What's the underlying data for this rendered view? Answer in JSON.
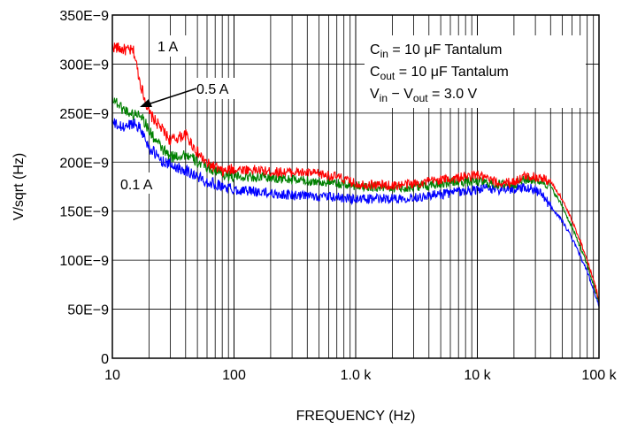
{
  "chart_data": {
    "type": "line",
    "xlabel": "FREQUENCY (Hz)",
    "ylabel": "V/sqrt (Hz)",
    "x_scale": "log",
    "xlim": [
      10,
      100000
    ],
    "ylim": [
      0,
      3.5e-07
    ],
    "x_ticks": [
      {
        "value": 10,
        "label": "10"
      },
      {
        "value": 100,
        "label": "100"
      },
      {
        "value": 1000,
        "label": "1.0 k"
      },
      {
        "value": 10000,
        "label": "10 k"
      },
      {
        "value": 100000,
        "label": "100 k"
      }
    ],
    "y_ticks": [
      {
        "value": 0,
        "label": "0"
      },
      {
        "value": 5e-08,
        "label": "50E−9"
      },
      {
        "value": 1e-07,
        "label": "100E−9"
      },
      {
        "value": 1.5e-07,
        "label": "150E−9"
      },
      {
        "value": 2e-07,
        "label": "200E−9"
      },
      {
        "value": 2.5e-07,
        "label": "250E−9"
      },
      {
        "value": 3e-07,
        "label": "300E−9"
      },
      {
        "value": 3.5e-07,
        "label": "350E−9"
      }
    ],
    "grid": true,
    "conditions": {
      "cin": {
        "main": "C",
        "sub": "in",
        "rest": " = 10 μF Tantalum"
      },
      "cout": {
        "main": "C",
        "sub": "out",
        "rest": " = 10 μF Tantalum"
      },
      "vdiff": {
        "v1": "V",
        "s1": "in",
        "mid": " − V",
        "s2": "out",
        "rest": " = 3.0 V"
      }
    },
    "series": [
      {
        "name": "1 A",
        "color": "#ff0000",
        "x": [
          10,
          12,
          15,
          17,
          20,
          25,
          30,
          40,
          50,
          60,
          70,
          80,
          100,
          150,
          200,
          300,
          500,
          700,
          1000,
          2000,
          3000,
          5000,
          7000,
          10000,
          12000,
          15000,
          20000,
          25000,
          30000,
          35000,
          40000,
          50000,
          60000,
          70000,
          80000,
          90000,
          100000
        ],
        "y": [
          3.18e-07,
          3.15e-07,
          3.13e-07,
          2.8e-07,
          2.5e-07,
          2.35e-07,
          2.22e-07,
          2.28e-07,
          2.1e-07,
          1.98e-07,
          1.95e-07,
          1.9e-07,
          1.93e-07,
          1.92e-07,
          1.9e-07,
          1.9e-07,
          1.88e-07,
          1.85e-07,
          1.78e-07,
          1.76e-07,
          1.78e-07,
          1.82e-07,
          1.84e-07,
          1.87e-07,
          1.83e-07,
          1.78e-07,
          1.8e-07,
          1.86e-07,
          1.85e-07,
          1.83e-07,
          1.8e-07,
          1.62e-07,
          1.4e-07,
          1.2e-07,
          1e-07,
          8e-08,
          6e-08
        ]
      },
      {
        "name": "0.5 A",
        "color": "#008000",
        "x": [
          10,
          12,
          15,
          17,
          20,
          25,
          30,
          40,
          50,
          60,
          70,
          80,
          100,
          150,
          200,
          300,
          500,
          700,
          1000,
          2000,
          3000,
          5000,
          7000,
          10000,
          12000,
          15000,
          20000,
          25000,
          30000,
          35000,
          40000,
          50000,
          60000,
          70000,
          80000,
          90000,
          100000
        ],
        "y": [
          2.66e-07,
          2.55e-07,
          2.48e-07,
          2.5e-07,
          2.32e-07,
          2.15e-07,
          2.05e-07,
          2.08e-07,
          2e-07,
          1.95e-07,
          1.92e-07,
          1.88e-07,
          1.85e-07,
          1.85e-07,
          1.84e-07,
          1.82e-07,
          1.8e-07,
          1.78e-07,
          1.76e-07,
          1.74e-07,
          1.75e-07,
          1.78e-07,
          1.8e-07,
          1.8e-07,
          1.79e-07,
          1.77e-07,
          1.78e-07,
          1.82e-07,
          1.82e-07,
          1.8e-07,
          1.75e-07,
          1.55e-07,
          1.33e-07,
          1.14e-07,
          9.5e-08,
          7.5e-08,
          5.7e-08
        ]
      },
      {
        "name": "0.1 A",
        "color": "#0000ff",
        "x": [
          10,
          12,
          15,
          17,
          20,
          25,
          30,
          40,
          50,
          60,
          70,
          80,
          100,
          150,
          200,
          300,
          500,
          700,
          1000,
          2000,
          3000,
          5000,
          7000,
          10000,
          12000,
          15000,
          20000,
          25000,
          30000,
          35000,
          40000,
          50000,
          60000,
          70000,
          80000,
          90000,
          100000
        ],
        "y": [
          2.4e-07,
          2.35e-07,
          2.4e-07,
          2.35e-07,
          2.15e-07,
          2.02e-07,
          1.97e-07,
          1.92e-07,
          1.85e-07,
          1.8e-07,
          1.78e-07,
          1.75e-07,
          1.72e-07,
          1.7e-07,
          1.68e-07,
          1.66e-07,
          1.65e-07,
          1.64e-07,
          1.62e-07,
          1.63e-07,
          1.64e-07,
          1.67e-07,
          1.7e-07,
          1.72e-07,
          1.73e-07,
          1.72e-07,
          1.73e-07,
          1.75e-07,
          1.72e-07,
          1.65e-07,
          1.55e-07,
          1.4e-07,
          1.22e-07,
          1.05e-07,
          8.8e-08,
          7e-08,
          5.3e-08
        ]
      }
    ]
  }
}
